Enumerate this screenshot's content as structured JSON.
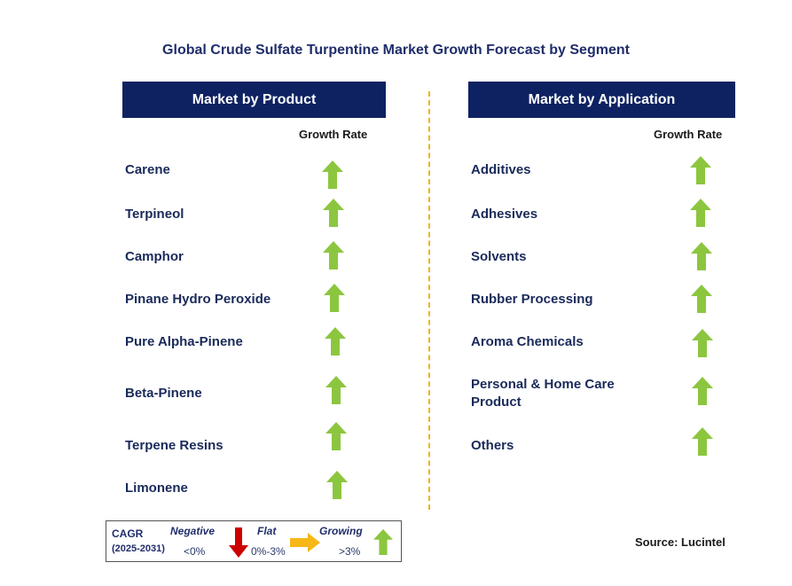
{
  "title": "Global Crude Sulfate Turpentine Market Growth Forecast by Segment",
  "left_panel": {
    "header": "Market by Product",
    "growth_rate_label": "Growth Rate",
    "items": [
      {
        "label": "Carene",
        "trend": "growing"
      },
      {
        "label": "Terpineol",
        "trend": "growing"
      },
      {
        "label": "Camphor",
        "trend": "growing"
      },
      {
        "label": "Pinane Hydro Peroxide",
        "trend": "growing"
      },
      {
        "label": "Pure Alpha-Pinene",
        "trend": "growing"
      },
      {
        "label": "Beta-Pinene",
        "trend": "growing"
      },
      {
        "label": "Terpene Resins",
        "trend": "growing"
      },
      {
        "label": "Limonene",
        "trend": "growing"
      }
    ]
  },
  "right_panel": {
    "header": "Market by Application",
    "growth_rate_label": "Growth Rate",
    "items": [
      {
        "label": "Additives",
        "trend": "growing"
      },
      {
        "label": "Adhesives",
        "trend": "growing"
      },
      {
        "label": "Solvents",
        "trend": "growing"
      },
      {
        "label": "Rubber Processing",
        "trend": "growing"
      },
      {
        "label": "Aroma Chemicals",
        "trend": "growing"
      },
      {
        "label": "Personal & Home Care",
        "trend": "growing"
      },
      {
        "label": "Product",
        "trend": ""
      },
      {
        "label": "Others",
        "trend": "growing"
      }
    ]
  },
  "legend": {
    "cagr": "CAGR",
    "period": "(2025-2031)",
    "negative": "Negative",
    "negative_range": "<0%",
    "flat": "Flat",
    "flat_range": "0%-3%",
    "growing": "Growing",
    "growing_range": ">3%"
  },
  "source": "Source: Lucintel",
  "colors": {
    "header_bg": "#0e2262",
    "growing_arrow": "#8cc63f",
    "negative_arrow": "#cc0000",
    "flat_arrow": "#f7b718",
    "divider": "#f2b416"
  }
}
